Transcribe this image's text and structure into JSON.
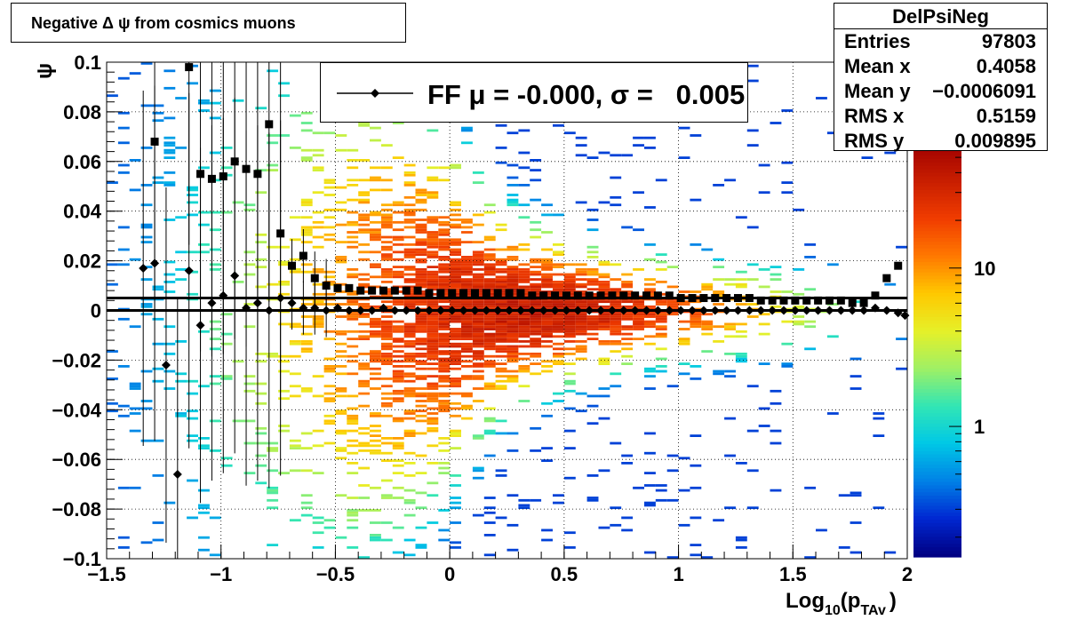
{
  "title": "Negative Δ ψ from cosmics muons",
  "stats": {
    "name": "DelPsiNeg",
    "rows": [
      {
        "label": "Entries",
        "value": "97803"
      },
      {
        "label": "Mean x",
        "value": "0.4058"
      },
      {
        "label": "Mean y",
        "value": "−0.0006091"
      },
      {
        "label": "RMS x",
        "value": "0.5159"
      },
      {
        "label": "RMS y",
        "value": "0.009895"
      }
    ]
  },
  "legend": {
    "text": "FF μ = -0.000, σ =   0.005"
  },
  "colors": {
    "marker": "#000000",
    "palette": [
      "#000082",
      "#0028d2",
      "#0082e6",
      "#00c8e6",
      "#32e6b4",
      "#a0f064",
      "#e6f028",
      "#ffc800",
      "#ff7800",
      "#f03c00",
      "#c81e00",
      "#a00000"
    ]
  },
  "chart_data": {
    "type": "heatmap",
    "xlabel_main": "Log",
    "xlabel_sub": "10",
    "xlabel_paren_open": "(p",
    "xlabel_sub2": "TAv",
    "xlabel_paren_close": ")",
    "ylabel": "ψ",
    "xlim": [
      -1.5,
      2
    ],
    "ylim": [
      -0.1,
      0.1
    ],
    "x_ticks": [
      {
        "v": -1.5,
        "label": "−1.5"
      },
      {
        "v": -1,
        "label": "−1"
      },
      {
        "v": -0.5,
        "label": "−0.5"
      },
      {
        "v": 0,
        "label": "0"
      },
      {
        "v": 0.5,
        "label": "0.5"
      },
      {
        "v": 1,
        "label": "1"
      },
      {
        "v": 1.5,
        "label": "1.5"
      },
      {
        "v": 2,
        "label": "2"
      }
    ],
    "y_ticks": [
      {
        "v": 0.1,
        "label": "0.1"
      },
      {
        "v": 0.08,
        "label": "0.08"
      },
      {
        "v": 0.06,
        "label": "0.06"
      },
      {
        "v": 0.04,
        "label": "0.04"
      },
      {
        "v": 0.02,
        "label": "0.02"
      },
      {
        "v": 0,
        "label": "0"
      },
      {
        "v": -0.02,
        "label": "−0.02"
      },
      {
        "v": -0.04,
        "label": "−0.04"
      },
      {
        "v": -0.06,
        "label": "−0.06"
      },
      {
        "v": -0.08,
        "label": "−0.08"
      },
      {
        "v": -0.1,
        "label": "−0.1"
      }
    ],
    "grid": true,
    "colorbar": {
      "scale": "log",
      "ticks": [
        {
          "v": 1,
          "label": "1"
        },
        {
          "v": 10,
          "label": "10"
        }
      ],
      "range": [
        0.15,
        60
      ]
    },
    "fit_lines": [
      0.005,
      0.0
    ],
    "series": [
      {
        "name": "FF",
        "marker": "diamond",
        "points": [
          [
            -1.34,
            0.017
          ],
          [
            -1.29,
            0.019
          ],
          [
            -1.24,
            -0.022
          ],
          [
            -1.19,
            -0.066
          ],
          [
            -1.14,
            0.016
          ],
          [
            -1.09,
            -0.006
          ],
          [
            -1.04,
            0.003
          ],
          [
            -0.99,
            0.006
          ],
          [
            -0.94,
            0.014
          ],
          [
            -0.89,
            0.001
          ],
          [
            -0.84,
            0.003
          ],
          [
            -0.79,
            0.0
          ],
          [
            -0.74,
            0.005
          ],
          [
            -0.69,
            0.003
          ],
          [
            -0.64,
            0.001
          ],
          [
            -0.59,
            0.001
          ],
          [
            -0.54,
            0.0
          ],
          [
            -0.49,
            0.001
          ],
          [
            -0.44,
            0.0
          ],
          [
            -0.39,
            0.0
          ],
          [
            -0.34,
            0.0
          ],
          [
            -0.29,
            0.001
          ],
          [
            -0.24,
            0.0
          ],
          [
            -0.19,
            0.0
          ],
          [
            -0.14,
            0.0
          ],
          [
            -0.09,
            0.0
          ],
          [
            -0.04,
            0.0
          ],
          [
            0.01,
            0.0
          ],
          [
            0.06,
            0.0
          ],
          [
            0.11,
            0.0
          ],
          [
            0.16,
            0.0
          ],
          [
            0.21,
            0.0
          ],
          [
            0.26,
            0.0
          ],
          [
            0.31,
            0.0
          ],
          [
            0.36,
            0.0
          ],
          [
            0.41,
            0.0
          ],
          [
            0.46,
            0.0
          ],
          [
            0.51,
            0.0
          ],
          [
            0.56,
            0.0
          ],
          [
            0.61,
            0.0
          ],
          [
            0.66,
            0.0
          ],
          [
            0.71,
            0.0
          ],
          [
            0.76,
            0.0
          ],
          [
            0.81,
            0.0
          ],
          [
            0.86,
            0.0
          ],
          [
            0.91,
            0.0
          ],
          [
            0.96,
            0.0
          ],
          [
            1.01,
            0.0
          ],
          [
            1.06,
            0.0
          ],
          [
            1.11,
            0.0
          ],
          [
            1.16,
            0.0
          ],
          [
            1.21,
            0.0
          ],
          [
            1.26,
            0.0
          ],
          [
            1.31,
            0.0
          ],
          [
            1.36,
            0.0
          ],
          [
            1.41,
            0.0
          ],
          [
            1.46,
            0.0
          ],
          [
            1.51,
            0.0
          ],
          [
            1.56,
            0.0
          ],
          [
            1.61,
            0.0
          ],
          [
            1.66,
            0.0
          ],
          [
            1.71,
            0.0
          ],
          [
            1.76,
            0.0
          ],
          [
            1.81,
            0.0
          ],
          [
            1.86,
            0.001
          ],
          [
            1.91,
            0.0
          ],
          [
            1.96,
            -0.001
          ],
          [
            1.99,
            -0.002
          ]
        ]
      },
      {
        "name": "σ",
        "marker": "square",
        "points": [
          [
            -1.29,
            0.068
          ],
          [
            -1.14,
            0.098
          ],
          [
            -1.09,
            0.055
          ],
          [
            -1.04,
            0.053
          ],
          [
            -0.99,
            0.054
          ],
          [
            -0.94,
            0.06
          ],
          [
            -0.89,
            0.057
          ],
          [
            -0.84,
            0.055
          ],
          [
            -0.79,
            0.075
          ],
          [
            -0.74,
            0.031
          ],
          [
            -0.69,
            0.018
          ],
          [
            -0.64,
            0.022
          ],
          [
            -0.59,
            0.013
          ],
          [
            -0.54,
            0.01
          ],
          [
            -0.49,
            0.009
          ],
          [
            -0.44,
            0.009
          ],
          [
            -0.39,
            0.008
          ],
          [
            -0.34,
            0.008
          ],
          [
            -0.29,
            0.008
          ],
          [
            -0.24,
            0.008
          ],
          [
            -0.19,
            0.008
          ],
          [
            -0.14,
            0.008
          ],
          [
            -0.09,
            0.007
          ],
          [
            -0.04,
            0.007
          ],
          [
            0.01,
            0.007
          ],
          [
            0.06,
            0.007
          ],
          [
            0.11,
            0.007
          ],
          [
            0.16,
            0.007
          ],
          [
            0.21,
            0.007
          ],
          [
            0.26,
            0.007
          ],
          [
            0.31,
            0.007
          ],
          [
            0.36,
            0.006
          ],
          [
            0.41,
            0.006
          ],
          [
            0.46,
            0.006
          ],
          [
            0.51,
            0.006
          ],
          [
            0.56,
            0.006
          ],
          [
            0.61,
            0.006
          ],
          [
            0.66,
            0.006
          ],
          [
            0.71,
            0.006
          ],
          [
            0.76,
            0.006
          ],
          [
            0.81,
            0.006
          ],
          [
            0.86,
            0.006
          ],
          [
            0.91,
            0.006
          ],
          [
            0.96,
            0.006
          ],
          [
            1.01,
            0.005
          ],
          [
            1.06,
            0.005
          ],
          [
            1.11,
            0.005
          ],
          [
            1.16,
            0.005
          ],
          [
            1.21,
            0.005
          ],
          [
            1.26,
            0.005
          ],
          [
            1.31,
            0.005
          ],
          [
            1.36,
            0.004
          ],
          [
            1.41,
            0.004
          ],
          [
            1.46,
            0.004
          ],
          [
            1.51,
            0.004
          ],
          [
            1.56,
            0.004
          ],
          [
            1.61,
            0.004
          ],
          [
            1.66,
            0.004
          ],
          [
            1.71,
            0.004
          ],
          [
            1.76,
            0.003
          ],
          [
            1.81,
            0.003
          ],
          [
            1.86,
            0.006
          ],
          [
            1.91,
            0.013
          ],
          [
            1.96,
            0.018
          ]
        ]
      }
    ]
  }
}
